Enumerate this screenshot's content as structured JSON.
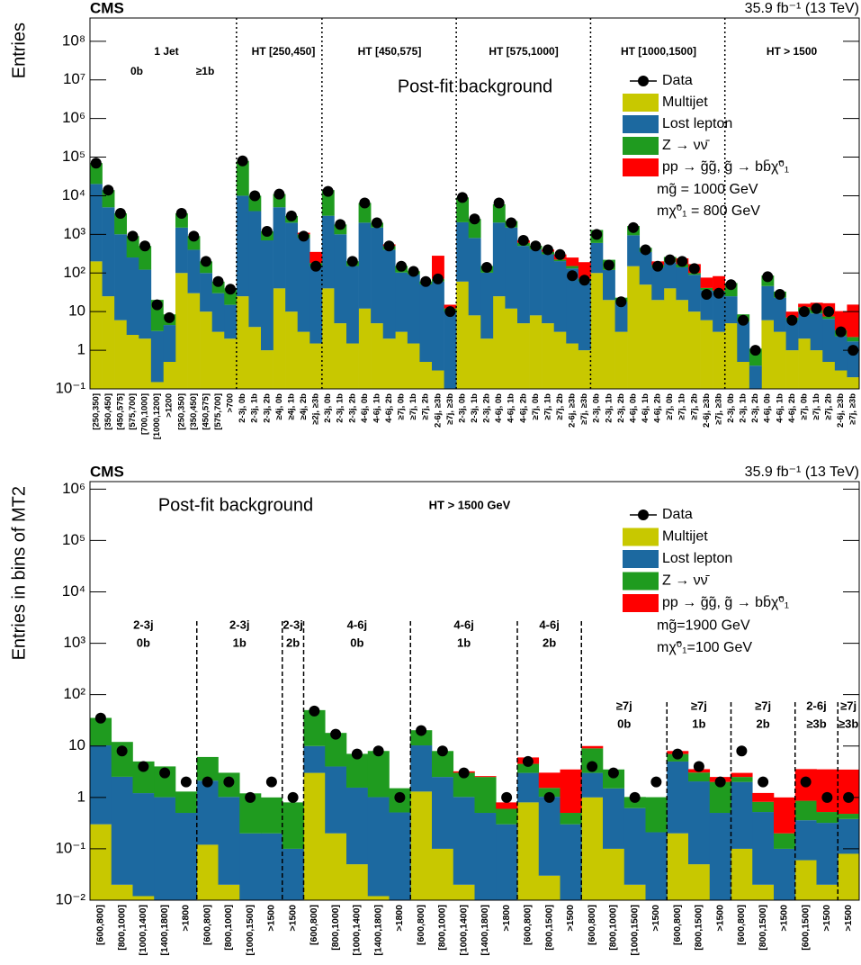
{
  "chart_data": [
    {
      "type": "bar",
      "stacked": true,
      "log_y": true,
      "title": "CMS",
      "subtitle": "35.9 fb⁻¹ (13 TeV)",
      "ylabel": "Entries",
      "annotations": [
        "1 Jet",
        "0b",
        "≥1b",
        "HT [250,450]",
        "HT [450,575]",
        "HT [575,1000]",
        "HT [1000,1500]",
        "HT > 1500",
        "Post-fit background"
      ],
      "legend_extra": [
        "mg̃ = 1000 GeV",
        "mχ̃⁰₁ = 800 GeV"
      ],
      "categories": [
        "[250,350]",
        "[350,450]",
        "[450,575]",
        "[575,700]",
        "[700,1000]",
        "[1000,1200]",
        ">1200",
        "[250,350]",
        "[350,450]",
        "[450,575]",
        "[575,700]",
        ">700",
        "2-3j, 0b",
        "2-3j, 1b",
        "2-3j, 2b",
        "≥4j, 0b",
        "≥4j, 1b",
        "≥4j, 2b",
        "≥2j, ≥3b",
        "2-3j, 0b",
        "2-3j, 1b",
        "2-3j, 2b",
        "4-6j, 0b",
        "4-6j, 1b",
        "4-6j, 2b",
        "≥7j, 0b",
        "≥7j, 1b",
        "≥7j, 2b",
        "2-6j, ≥3b",
        "≥7j, ≥3b",
        "2-3j, 0b",
        "2-3j, 1b",
        "2-3j, 2b",
        "4-6j, 0b",
        "4-6j, 1b",
        "4-6j, 2b",
        "≥7j, 0b",
        "≥7j, 1b",
        "≥7j, 2b",
        "2-6j, ≥3b",
        "≥7j, ≥3b",
        "2-3j, 0b",
        "2-3j, 1b",
        "2-3j, 2b",
        "4-6j, 0b",
        "4-6j, 1b",
        "4-6j, 2b",
        "≥7j, 0b",
        "≥7j, 1b",
        "≥7j, 2b",
        "2-6j, ≥3b",
        "≥7j, ≥3b",
        "2-3j, 0b",
        "2-3j, 1b",
        "2-3j, 2b",
        "4-6j, 0b",
        "4-6j, 1b",
        "4-6j, 2b",
        "≥7j, 0b",
        "≥7j, 1b",
        "≥7j, 2b",
        "2-6j, ≥3b",
        "≥7j, ≥3b"
      ],
      "series": [
        {
          "name": "Multijet",
          "color": "#c8c800",
          "values": [
            200,
            25,
            6,
            2.5,
            2,
            0.15,
            0.5,
            100,
            30,
            10,
            3,
            2,
            25,
            4,
            1,
            40,
            10,
            3,
            1.5,
            40,
            5,
            1.5,
            12,
            5,
            2,
            3,
            1.5,
            0.5,
            0.3,
            0.1,
            60,
            8,
            2,
            25,
            12,
            5,
            8,
            5,
            3,
            1.5,
            1,
            100,
            20,
            3,
            150,
            50,
            20,
            40,
            20,
            10,
            6,
            3,
            5,
            0.5,
            0.1,
            6,
            3,
            1,
            2,
            1,
            0.5,
            0.3,
            0.2
          ]
        },
        {
          "name": "Lost lepton",
          "color": "#1c69a0",
          "values": [
            20000,
            5000,
            1000,
            250,
            120,
            3,
            4,
            1400,
            370,
            90,
            27,
            13,
            10000,
            4000,
            700,
            5000,
            2000,
            800,
            150,
            3000,
            1000,
            150,
            2000,
            1500,
            400,
            100,
            90,
            50,
            60,
            10,
            2000,
            800,
            100,
            2000,
            1500,
            500,
            400,
            300,
            200,
            130,
            60,
            500,
            100,
            15,
            800,
            300,
            120,
            150,
            120,
            80,
            30,
            30,
            20,
            5,
            0.3,
            40,
            20,
            5,
            8,
            8,
            6,
            2,
            1.5
          ]
        },
        {
          "name": "Z → νν̄",
          "color": "#1f9b1f",
          "values": [
            50000,
            9000,
            2500,
            650,
            380,
            17,
            4,
            2000,
            500,
            100,
            30,
            25,
            70000,
            6000,
            500,
            6000,
            1000,
            200,
            30,
            11000,
            800,
            50,
            4500,
            500,
            100,
            50,
            20,
            10,
            10,
            2,
            7000,
            1700,
            50,
            4000,
            700,
            100,
            100,
            50,
            20,
            20,
            10,
            700,
            100,
            5,
            700,
            100,
            20,
            70,
            30,
            10,
            5,
            2,
            30,
            3,
            0.7,
            40,
            10,
            1,
            3,
            2,
            1,
            1,
            0.5
          ]
        },
        {
          "name": "pp → g̃g̃, g̃ → bb̄χ̃⁰₁",
          "color": "#ff0000",
          "values": [
            0,
            0,
            0,
            0,
            0,
            0,
            0,
            0,
            0,
            0,
            0,
            0,
            0,
            0,
            0,
            0,
            0,
            100,
            170,
            0,
            0,
            0,
            0,
            0,
            50,
            0,
            0,
            0,
            210,
            3,
            0,
            0,
            0,
            0,
            0,
            100,
            0,
            50,
            80,
            100,
            120,
            0,
            0,
            0,
            0,
            0,
            40,
            0,
            70,
            70,
            35,
            48,
            0,
            0,
            0,
            0,
            0,
            3,
            3,
            6,
            9,
            7,
            13
          ]
        }
      ],
      "data": {
        "name": "Data",
        "color": "#000000",
        "values": [
          70000,
          14000,
          3500,
          900,
          500,
          15,
          7,
          3500,
          900,
          200,
          60,
          38,
          80000,
          10000,
          1200,
          11000,
          3000,
          900,
          150,
          13000,
          1800,
          200,
          6500,
          2000,
          500,
          150,
          110,
          60,
          70,
          10,
          9000,
          2500,
          140,
          6500,
          2000,
          700,
          500,
          400,
          300,
          85,
          65,
          1000,
          160,
          18,
          1500,
          400,
          150,
          220,
          200,
          130,
          28,
          30,
          50,
          6,
          1,
          80,
          28,
          6,
          10,
          12,
          10,
          3,
          1
        ]
      },
      "ylim": [
        0.1,
        400000000
      ],
      "yticks": [
        {
          "value": 0.1,
          "label": "10⁻¹"
        },
        1,
        10,
        {
          "value": 100,
          "label": "10²"
        },
        {
          "value": 1000,
          "label": "10³"
        },
        {
          "value": 10000,
          "label": "10⁴"
        },
        {
          "value": 100000,
          "label": "10⁵"
        },
        {
          "value": 1000000,
          "label": "10⁶"
        },
        {
          "value": 10000000,
          "label": "10⁷"
        },
        {
          "value": 100000000,
          "label": "10⁸"
        }
      ]
    },
    {
      "type": "bar",
      "stacked": true,
      "log_y": true,
      "title": "CMS",
      "subtitle": "35.9 fb⁻¹ (13 TeV)",
      "ylabel": "Entries in bins of MT2",
      "annotations": [
        "Post-fit background",
        "HT > 1500 GeV"
      ],
      "group_labels": [
        [
          "2-3j",
          "0b"
        ],
        [
          "2-3j",
          "1b"
        ],
        [
          "2-3j",
          "2b"
        ],
        [
          "4-6j",
          "0b"
        ],
        [
          "4-6j",
          "1b"
        ],
        [
          "4-6j",
          "2b"
        ],
        [
          "≥7j",
          "0b"
        ],
        [
          "≥7j",
          "1b"
        ],
        [
          "≥7j",
          "2b"
        ],
        [
          "2-6j",
          "≥3b"
        ],
        [
          "≥7j",
          "≥3b"
        ]
      ],
      "legend_extra": [
        "mg̃=1900 GeV",
        "mχ̃⁰₁=100 GeV"
      ],
      "categories": [
        "[600,800]",
        "[800,1000]",
        "[1000,1400]",
        "[1400,1800]",
        ">1800",
        "[600,800]",
        "[800,1000]",
        "[1000,1500]",
        ">1500",
        ">1500",
        "[600,800]",
        "[800,1000]",
        "[1000,1400]",
        "[1400,1800]",
        ">1800",
        "[600,800]",
        "[800,1000]",
        "[1000,1400]",
        "[1400,1800]",
        ">1800",
        "[600,800]",
        "[800,1500]",
        ">1500",
        "[600,800]",
        "[800,1000]",
        "[1000,1500]",
        ">1500",
        "[600,800]",
        "[800,1500]",
        ">1500",
        "[600,800]",
        "[800,1500]",
        ">1500",
        "[600,1500]",
        ">1500",
        ">1500"
      ],
      "series": [
        {
          "name": "Multijet",
          "color": "#c8c800",
          "values": [
            0.3,
            0.02,
            0.012,
            0.01,
            0,
            0.12,
            0.02,
            0,
            0,
            0,
            3,
            0.2,
            0.05,
            0.012,
            0.01,
            1.3,
            0.1,
            0.02,
            0,
            0,
            0.8,
            0.03,
            0,
            1,
            0.1,
            0.02,
            0.01,
            0.2,
            0.05,
            0,
            0.1,
            0.02,
            0,
            0.06,
            0.02,
            0.08
          ]
        },
        {
          "name": "Lost lepton",
          "color": "#1c69a0",
          "values": [
            10,
            2.5,
            1.2,
            1,
            0.5,
            2,
            1,
            0.2,
            0.2,
            0.1,
            7,
            3.8,
            1.5,
            1,
            0.5,
            9,
            2.4,
            1,
            0.5,
            0.3,
            2.2,
            1,
            0.3,
            2,
            1.4,
            0.6,
            0.2,
            4.8,
            2,
            0.5,
            1.9,
            0.5,
            0.1,
            0.3,
            0.3,
            0.3
          ]
        },
        {
          "name": "Z → νν̄",
          "color": "#1f9b1f",
          "values": [
            25,
            9.5,
            3.8,
            3,
            0.8,
            4,
            2,
            1,
            0.8,
            0.7,
            40,
            14,
            5.5,
            7,
            1,
            10,
            5.5,
            2,
            2,
            0.3,
            1.5,
            0.5,
            0.2,
            6,
            2,
            0.4,
            0.8,
            2,
            1,
            1.5,
            0.5,
            0.3,
            0.1,
            0.5,
            0.2,
            0.1
          ]
        },
        {
          "name": "pp → g̃g̃, g̃ → bb̄χ̃⁰₁",
          "color": "#ff0000",
          "values": [
            0,
            0,
            0,
            0,
            0,
            0,
            0,
            0,
            0,
            0,
            0,
            0,
            0,
            0,
            0,
            0,
            0,
            0.2,
            0.1,
            0.2,
            1.5,
            1.5,
            3,
            1,
            0,
            0,
            0,
            1,
            0.5,
            0.5,
            0.5,
            0.4,
            0.8,
            2.7,
            3,
            3
          ]
        }
      ],
      "data": {
        "name": "Data",
        "color": "#000000",
        "values": [
          35,
          8,
          4,
          3,
          2,
          2,
          2,
          1,
          2,
          1,
          48,
          17,
          7,
          8,
          1,
          20,
          8,
          3,
          null,
          1,
          5,
          1,
          null,
          4,
          3,
          1,
          2,
          7,
          4,
          2,
          8,
          2,
          null,
          2,
          1,
          1
        ]
      },
      "ylim": [
        0.01,
        1400000
      ],
      "yticks": [
        {
          "value": 0.01,
          "label": "10⁻²"
        },
        {
          "value": 0.1,
          "label": "10⁻¹"
        },
        1,
        10,
        {
          "value": 100,
          "label": "10²"
        },
        {
          "value": 1000,
          "label": "10³"
        },
        {
          "value": 10000,
          "label": "10⁴"
        },
        {
          "value": 100000,
          "label": "10⁵"
        },
        {
          "value": 1000000,
          "label": "10⁶"
        }
      ]
    }
  ]
}
